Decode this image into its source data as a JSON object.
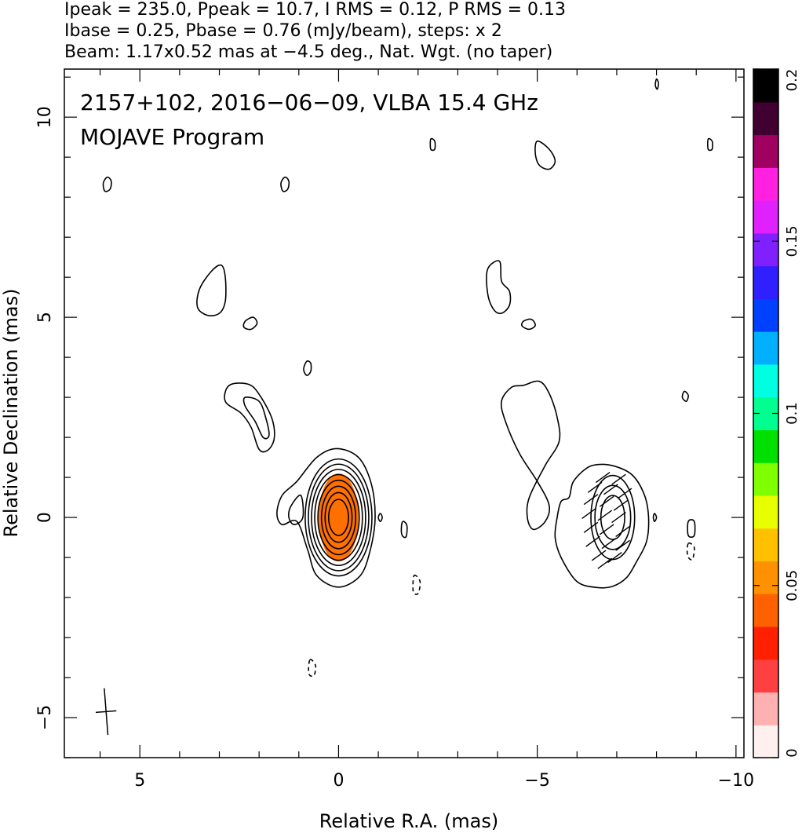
{
  "chart_data": {
    "type": "contour",
    "header": [
      "Ipeak = 235.0, Ppeak = 10.7, I RMS = 0.12, P RMS = 0.13",
      "Ibase = 0.25, Pbase = 0.76 (mJy/beam), steps: x 2",
      "Beam: 1.17x0.52 mas at −4.5 deg., Nat. Wgt. (no taper)"
    ],
    "annotation": [
      "2157+102, 2016−06−09, VLBA 15.4 GHz",
      "MOJAVE Program"
    ],
    "xlabel": "Relative R.A. (mas)",
    "ylabel": "Relative Declination (mas)",
    "xlim": [
      6.9,
      -10.2
    ],
    "ylim": [
      -6.0,
      11.2
    ],
    "x_ticks": [
      {
        "v": 5,
        "label": "5"
      },
      {
        "v": 0,
        "label": "0"
      },
      {
        "v": -5,
        "label": "−5"
      },
      {
        "v": -10,
        "label": "−10"
      }
    ],
    "y_ticks": [
      {
        "v": 10,
        "label": "10"
      },
      {
        "v": 5,
        "label": "5"
      },
      {
        "v": 0,
        "label": "0"
      },
      {
        "v": -5,
        "label": "−5"
      }
    ],
    "colorbar": {
      "min": 0,
      "max": 0.2,
      "ticks": [
        {
          "v": 0,
          "label": "0"
        },
        {
          "v": 0.05,
          "label": "0.05"
        },
        {
          "v": 0.1,
          "label": "0.1"
        },
        {
          "v": 0.15,
          "label": "0.15"
        },
        {
          "v": 0.2,
          "label": "0.2"
        }
      ],
      "colors": [
        "#fff0f0",
        "#ffb0b0",
        "#ff4040",
        "#ff2000",
        "#ff6000",
        "#ff9000",
        "#ffc000",
        "#e8ff00",
        "#80ff00",
        "#00e000",
        "#00ff90",
        "#00ffe0",
        "#00b0ff",
        "#0040ff",
        "#3020ff",
        "#8020ff",
        "#e020ff",
        "#ff20e0",
        "#a00060",
        "#400030",
        "#000000"
      ]
    },
    "beam": {
      "major_mas": 1.17,
      "minor_mas": 0.52,
      "pa_deg": -4.5,
      "x": 5.85,
      "y": -4.85
    },
    "core_fill_color": "#ff7000",
    "stokes_I_panel": {
      "core": {
        "x": 0.0,
        "y": 0.0
      },
      "core_contours": [
        {
          "rx": 0.25,
          "ry": 0.45
        },
        {
          "rx": 0.34,
          "ry": 0.62
        },
        {
          "rx": 0.43,
          "ry": 0.78
        },
        {
          "rx": 0.52,
          "ry": 0.93
        },
        {
          "rx": 0.6,
          "ry": 1.07
        },
        {
          "rx": 0.68,
          "ry": 1.2
        },
        {
          "rx": 0.76,
          "ry": 1.33
        },
        {
          "rx": 0.84,
          "ry": 1.46
        }
      ],
      "core_fill": {
        "rx": 0.5,
        "ry": 1.1
      },
      "outer_contours": [
        [
          [
            0.05,
            1.72
          ],
          [
            0.55,
            1.5
          ],
          [
            1.05,
            0.9
          ],
          [
            1.42,
            0.55
          ],
          [
            1.55,
            0.1
          ],
          [
            1.42,
            -0.18
          ],
          [
            1.05,
            -0.1
          ],
          [
            0.78,
            -0.8
          ],
          [
            0.55,
            -1.45
          ],
          [
            0.0,
            -1.74
          ],
          [
            -0.55,
            -1.45
          ],
          [
            -0.8,
            -0.8
          ],
          [
            -0.92,
            0.0
          ],
          [
            -0.82,
            0.85
          ],
          [
            -0.5,
            1.5
          ]
        ],
        [
          [
            0.95,
            0.55
          ],
          [
            1.2,
            0.28
          ],
          [
            1.25,
            0.0
          ],
          [
            1.12,
            -0.18
          ],
          [
            0.9,
            0.0
          ]
        ],
        [
          [
            2.75,
            3.3
          ],
          [
            2.25,
            3.32
          ],
          [
            1.95,
            3.0
          ],
          [
            1.67,
            2.45
          ],
          [
            1.62,
            1.97
          ],
          [
            1.78,
            1.68
          ],
          [
            2.0,
            1.7
          ],
          [
            2.2,
            2.25
          ],
          [
            2.45,
            2.6
          ],
          [
            2.85,
            2.9
          ]
        ],
        [
          [
            2.35,
            3.0
          ],
          [
            2.0,
            2.9
          ],
          [
            1.83,
            2.48
          ],
          [
            1.75,
            2.05
          ],
          [
            1.9,
            2.0
          ],
          [
            2.1,
            2.4
          ],
          [
            2.35,
            2.78
          ]
        ],
        [
          [
            3.5,
            5.7
          ],
          [
            3.2,
            6.15
          ],
          [
            2.95,
            6.3
          ],
          [
            2.85,
            6.0
          ],
          [
            2.85,
            5.4
          ],
          [
            3.0,
            5.1
          ],
          [
            3.3,
            5.05
          ],
          [
            3.55,
            5.25
          ]
        ],
        [
          [
            2.35,
            4.9
          ],
          [
            2.15,
            5.0
          ],
          [
            2.05,
            4.85
          ],
          [
            2.2,
            4.7
          ],
          [
            2.38,
            4.75
          ]
        ],
        [
          [
            0.8,
            3.9
          ],
          [
            0.7,
            3.85
          ],
          [
            0.7,
            3.65
          ],
          [
            0.8,
            3.55
          ],
          [
            0.88,
            3.7
          ]
        ],
        [
          [
            5.82,
            8.5
          ],
          [
            5.72,
            8.4
          ],
          [
            5.75,
            8.2
          ],
          [
            5.88,
            8.15
          ],
          [
            5.92,
            8.35
          ]
        ],
        [
          [
            1.35,
            8.5
          ],
          [
            1.25,
            8.4
          ],
          [
            1.28,
            8.2
          ],
          [
            1.4,
            8.15
          ],
          [
            1.45,
            8.35
          ]
        ],
        [
          [
            -2.32,
            9.45
          ],
          [
            -2.42,
            9.4
          ],
          [
            -2.42,
            9.2
          ],
          [
            -2.32,
            9.2
          ]
        ],
        [
          [
            -1.05,
            0.1
          ],
          [
            -1.1,
            0.0
          ],
          [
            -1.05,
            -0.1
          ],
          [
            -1.0,
            0.0
          ]
        ],
        [
          [
            -1.62,
            -0.1
          ],
          [
            -1.72,
            -0.2
          ],
          [
            -1.7,
            -0.48
          ],
          [
            -1.6,
            -0.45
          ],
          [
            -1.58,
            -0.25
          ]
        ]
      ],
      "negative_contours": [
        [
          [
            -1.9,
            -1.45
          ],
          [
            -2.05,
            -1.6
          ],
          [
            -2.0,
            -1.9
          ],
          [
            -1.88,
            -1.85
          ]
        ],
        [
          [
            0.72,
            -3.55
          ],
          [
            0.58,
            -3.7
          ],
          [
            0.62,
            -3.95
          ],
          [
            0.75,
            -3.9
          ]
        ]
      ]
    },
    "polarization_panel": {
      "core": {
        "x": -6.9,
        "y": 0.0
      },
      "outer_contours": [
        [
          [
            -6.5,
            1.32
          ],
          [
            -6.95,
            1.28
          ],
          [
            -7.4,
            1.05
          ],
          [
            -7.7,
            0.55
          ],
          [
            -7.8,
            0.0
          ],
          [
            -7.75,
            -0.6
          ],
          [
            -7.5,
            -1.1
          ],
          [
            -7.25,
            -1.5
          ],
          [
            -6.9,
            -1.72
          ],
          [
            -6.5,
            -1.75
          ],
          [
            -6.0,
            -1.6
          ],
          [
            -5.6,
            -1.0
          ],
          [
            -5.45,
            -0.5
          ],
          [
            -5.5,
            0.0
          ],
          [
            -5.6,
            0.4
          ],
          [
            -5.8,
            0.5
          ],
          [
            -5.9,
            0.88
          ],
          [
            -6.2,
            1.2
          ]
        ],
        [
          [
            -4.05,
            6.4
          ],
          [
            -3.75,
            6.2
          ],
          [
            -3.75,
            5.6
          ],
          [
            -3.9,
            5.2
          ],
          [
            -4.1,
            5.1
          ],
          [
            -4.3,
            5.3
          ],
          [
            -4.3,
            5.65
          ],
          [
            -4.1,
            5.9
          ]
        ],
        [
          [
            -4.65,
            4.9
          ],
          [
            -4.85,
            4.95
          ],
          [
            -4.95,
            4.8
          ],
          [
            -4.8,
            4.7
          ],
          [
            -4.62,
            4.78
          ]
        ],
        [
          [
            -4.35,
            3.25
          ],
          [
            -4.65,
            3.3
          ],
          [
            -5.05,
            3.4
          ],
          [
            -5.3,
            3.1
          ],
          [
            -5.5,
            2.5
          ],
          [
            -5.55,
            1.9
          ],
          [
            -5.2,
            1.3
          ],
          [
            -4.8,
            0.5
          ],
          [
            -4.75,
            0.0
          ],
          [
            -4.9,
            -0.3
          ],
          [
            -5.2,
            -0.1
          ],
          [
            -5.3,
            0.3
          ],
          [
            -5.0,
            0.9
          ],
          [
            -4.55,
            1.6
          ],
          [
            -4.2,
            2.4
          ],
          [
            -4.1,
            2.9
          ]
        ],
        [
          [
            -5.0,
            9.4
          ],
          [
            -5.3,
            9.2
          ],
          [
            -5.45,
            8.9
          ],
          [
            -5.3,
            8.7
          ],
          [
            -5.05,
            8.8
          ],
          [
            -4.95,
            9.1
          ]
        ],
        [
          [
            -9.3,
            9.45
          ],
          [
            -9.4,
            9.4
          ],
          [
            -9.4,
            9.2
          ],
          [
            -9.3,
            9.2
          ]
        ],
        [
          [
            -8.0,
            10.95
          ],
          [
            -8.05,
            10.85
          ],
          [
            -8.02,
            10.7
          ],
          [
            -7.97,
            10.8
          ]
        ],
        [
          [
            -8.7,
            3.15
          ],
          [
            -8.8,
            3.05
          ],
          [
            -8.75,
            2.9
          ],
          [
            -8.65,
            3.0
          ]
        ],
        [
          [
            -8.8,
            -0.1
          ],
          [
            -8.95,
            -0.1
          ],
          [
            -8.95,
            -0.45
          ],
          [
            -8.8,
            -0.45
          ]
        ],
        [
          [
            -7.95,
            0.1
          ],
          [
            -8.0,
            0.0
          ],
          [
            -7.95,
            -0.1
          ],
          [
            -7.92,
            0.0
          ]
        ]
      ],
      "core_contours": [
        {
          "rx": 0.3,
          "ry": 0.55
        },
        {
          "rx": 0.45,
          "ry": 0.8
        },
        {
          "rx": 0.55,
          "ry": 1.05
        }
      ],
      "negative_contours": [
        [
          [
            -8.8,
            -0.65
          ],
          [
            -8.95,
            -0.75
          ],
          [
            -8.9,
            -1.05
          ],
          [
            -8.78,
            -0.95
          ]
        ]
      ],
      "evpa_vectors": [
        {
          "x": -6.65,
          "y": 1.0
        },
        {
          "x": -7.05,
          "y": 0.95
        },
        {
          "x": -6.45,
          "y": 0.75
        },
        {
          "x": -6.85,
          "y": 0.7
        },
        {
          "x": -7.2,
          "y": 0.6
        },
        {
          "x": -6.35,
          "y": 0.45
        },
        {
          "x": -6.75,
          "y": 0.4
        },
        {
          "x": -7.1,
          "y": 0.3
        },
        {
          "x": -6.3,
          "y": 0.1
        },
        {
          "x": -6.7,
          "y": 0.05
        },
        {
          "x": -7.05,
          "y": 0.0
        },
        {
          "x": -6.35,
          "y": -0.25
        },
        {
          "x": -6.75,
          "y": -0.3
        },
        {
          "x": -7.15,
          "y": -0.35
        },
        {
          "x": -6.4,
          "y": -0.6
        },
        {
          "x": -6.8,
          "y": -0.65
        },
        {
          "x": -7.15,
          "y": -0.7
        },
        {
          "x": -6.55,
          "y": -0.95
        },
        {
          "x": -6.95,
          "y": -1.0
        },
        {
          "x": -6.7,
          "y": -1.15
        }
      ]
    }
  }
}
